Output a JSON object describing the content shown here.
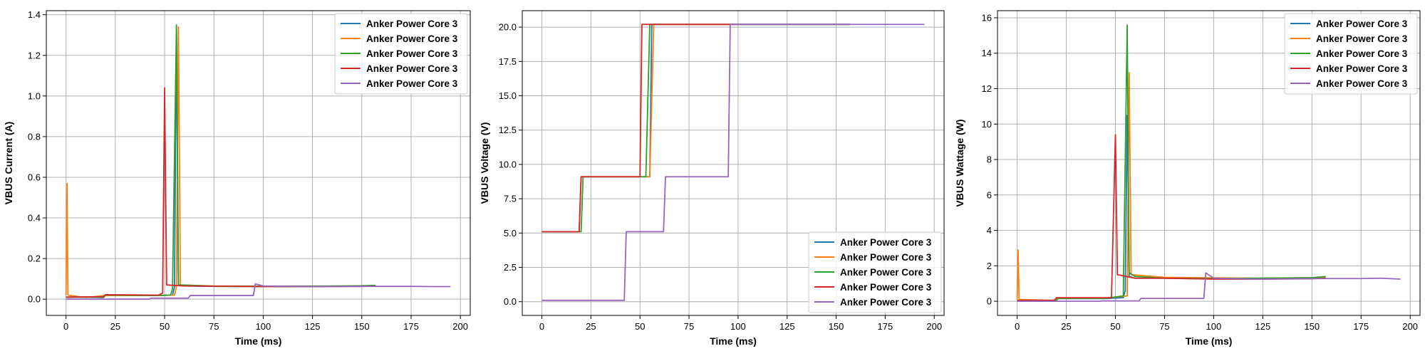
{
  "chart_data": [
    {
      "type": "line",
      "xlabel": "Time (ms)",
      "ylabel": "VBUS Current (A)",
      "xlim": [
        -10,
        205
      ],
      "ylim": [
        -0.08,
        1.42
      ],
      "xticks": [
        0,
        25,
        50,
        75,
        100,
        125,
        150,
        175,
        200
      ],
      "yticks": [
        0.0,
        0.2,
        0.4,
        0.6,
        0.8,
        1.0,
        1.2,
        1.4
      ],
      "ytick_decimals": 1,
      "grid": true,
      "legend_position": "top-right",
      "series": [
        {
          "name": "Anker Power Core 3",
          "color": "#1f77b4",
          "points": [
            [
              0,
              0.01
            ],
            [
              10,
              0.01
            ],
            [
              19,
              0.008
            ],
            [
              20,
              0.02
            ],
            [
              45,
              0.018
            ],
            [
              54,
              0.02
            ],
            [
              55,
              0.06
            ],
            [
              56,
              1.33
            ],
            [
              57,
              0.07
            ],
            [
              60,
              0.065
            ],
            [
              75,
              0.063
            ],
            [
              100,
              0.062
            ],
            [
              125,
              0.063
            ],
            [
              150,
              0.064
            ],
            [
              157,
              0.066
            ]
          ]
        },
        {
          "name": "Anker Power Core 3",
          "color": "#ff7f0e",
          "points": [
            [
              0,
              0.02
            ],
            [
              0.5,
              0.57
            ],
            [
              1,
              0.02
            ],
            [
              10,
              0.008
            ],
            [
              20,
              0.018
            ],
            [
              45,
              0.018
            ],
            [
              55,
              0.02
            ],
            [
              56,
              0.06
            ],
            [
              57,
              1.34
            ],
            [
              58,
              0.07
            ],
            [
              75,
              0.065
            ],
            [
              100,
              0.064
            ],
            [
              125,
              0.064
            ],
            [
              150,
              0.065
            ],
            [
              157,
              0.066
            ]
          ]
        },
        {
          "name": "Anker Power Core 3",
          "color": "#2ca02c",
          "points": [
            [
              0,
              0.01
            ],
            [
              19,
              0.01
            ],
            [
              20,
              0.02
            ],
            [
              45,
              0.018
            ],
            [
              53,
              0.02
            ],
            [
              54,
              0.05
            ],
            [
              56,
              1.35
            ],
            [
              57,
              0.07
            ],
            [
              75,
              0.064
            ],
            [
              100,
              0.063
            ],
            [
              125,
              0.064
            ],
            [
              150,
              0.066
            ],
            [
              157,
              0.068
            ]
          ]
        },
        {
          "name": "Anker Power Core 3",
          "color": "#d62728",
          "points": [
            [
              0,
              0.01
            ],
            [
              19,
              0.012
            ],
            [
              20,
              0.022
            ],
            [
              47,
              0.02
            ],
            [
              49,
              0.03
            ],
            [
              50,
              1.04
            ],
            [
              51,
              0.07
            ],
            [
              60,
              0.065
            ],
            [
              75,
              0.064
            ],
            [
              100,
              0.062
            ],
            [
              125,
              0.062
            ],
            [
              150,
              0.063
            ],
            [
              157,
              0.064
            ]
          ]
        },
        {
          "name": "Anker Power Core 3",
          "color": "#9467bd",
          "points": [
            [
              0,
              0.0
            ],
            [
              20,
              0.0
            ],
            [
              42,
              0.0
            ],
            [
              43,
              0.005
            ],
            [
              62,
              0.005
            ],
            [
              63,
              0.018
            ],
            [
              95,
              0.018
            ],
            [
              96,
              0.075
            ],
            [
              100,
              0.065
            ],
            [
              125,
              0.062
            ],
            [
              150,
              0.063
            ],
            [
              175,
              0.063
            ],
            [
              185,
              0.062
            ],
            [
              195,
              0.062
            ]
          ]
        }
      ]
    },
    {
      "type": "line",
      "xlabel": "Time (ms)",
      "ylabel": "VBUS Voltage (V)",
      "xlim": [
        -10,
        205
      ],
      "ylim": [
        -1.0,
        21.2
      ],
      "xticks": [
        0,
        25,
        50,
        75,
        100,
        125,
        150,
        175,
        200
      ],
      "yticks": [
        0.0,
        2.5,
        5.0,
        7.5,
        10.0,
        12.5,
        15.0,
        17.5,
        20.0
      ],
      "ytick_decimals": 1,
      "grid": true,
      "legend_position": "bottom-right",
      "series": [
        {
          "name": "Anker Power Core 3",
          "color": "#1f77b4",
          "points": [
            [
              0,
              5.1
            ],
            [
              19,
              5.1
            ],
            [
              20,
              9.1
            ],
            [
              55,
              9.1
            ],
            [
              56,
              20.2
            ],
            [
              157,
              20.2
            ]
          ]
        },
        {
          "name": "Anker Power Core 3",
          "color": "#ff7f0e",
          "points": [
            [
              0,
              5.1
            ],
            [
              19,
              5.1
            ],
            [
              20,
              9.1
            ],
            [
              55,
              9.1
            ],
            [
              57,
              20.2
            ],
            [
              157,
              20.2
            ]
          ]
        },
        {
          "name": "Anker Power Core 3",
          "color": "#2ca02c",
          "points": [
            [
              0,
              5.1
            ],
            [
              20,
              5.1
            ],
            [
              21,
              9.1
            ],
            [
              53,
              9.1
            ],
            [
              55,
              20.2
            ],
            [
              157,
              20.2
            ]
          ]
        },
        {
          "name": "Anker Power Core 3",
          "color": "#d62728",
          "points": [
            [
              0,
              5.1
            ],
            [
              19,
              5.1
            ],
            [
              20,
              9.1
            ],
            [
              50,
              9.1
            ],
            [
              51,
              20.2
            ],
            [
              157,
              20.2
            ]
          ]
        },
        {
          "name": "Anker Power Core 3",
          "color": "#9467bd",
          "points": [
            [
              0,
              0.1
            ],
            [
              42,
              0.1
            ],
            [
              43,
              5.1
            ],
            [
              62,
              5.1
            ],
            [
              63,
              9.1
            ],
            [
              95,
              9.1
            ],
            [
              96,
              20.2
            ],
            [
              195,
              20.2
            ]
          ]
        }
      ]
    },
    {
      "type": "line",
      "xlabel": "Time (ms)",
      "ylabel": "VBUS Wattage (W)",
      "xlim": [
        -10,
        205
      ],
      "ylim": [
        -0.8,
        16.4
      ],
      "xticks": [
        0,
        25,
        50,
        75,
        100,
        125,
        150,
        175,
        200
      ],
      "yticks": [
        0,
        2,
        4,
        6,
        8,
        10,
        12,
        14,
        16
      ],
      "ytick_decimals": 0,
      "grid": true,
      "legend_position": "top-right",
      "series": [
        {
          "name": "Anker Power Core 3",
          "color": "#1f77b4",
          "points": [
            [
              0,
              0.05
            ],
            [
              19,
              0.05
            ],
            [
              20,
              0.15
            ],
            [
              45,
              0.15
            ],
            [
              54,
              0.2
            ],
            [
              55,
              0.6
            ],
            [
              56,
              10.5
            ],
            [
              57,
              1.4
            ],
            [
              60,
              1.3
            ],
            [
              75,
              1.3
            ],
            [
              100,
              1.28
            ],
            [
              125,
              1.3
            ],
            [
              150,
              1.32
            ],
            [
              157,
              1.35
            ]
          ]
        },
        {
          "name": "Anker Power Core 3",
          "color": "#ff7f0e",
          "points": [
            [
              0,
              0.1
            ],
            [
              0.5,
              2.9
            ],
            [
              1,
              0.1
            ],
            [
              19,
              0.05
            ],
            [
              20,
              0.17
            ],
            [
              45,
              0.17
            ],
            [
              56,
              0.3
            ],
            [
              57,
              12.9
            ],
            [
              58,
              1.5
            ],
            [
              75,
              1.35
            ],
            [
              100,
              1.32
            ],
            [
              125,
              1.3
            ],
            [
              150,
              1.33
            ],
            [
              157,
              1.35
            ]
          ]
        },
        {
          "name": "Anker Power Core 3",
          "color": "#2ca02c",
          "points": [
            [
              0,
              0.05
            ],
            [
              20,
              0.05
            ],
            [
              21,
              0.17
            ],
            [
              45,
              0.17
            ],
            [
              54,
              0.3
            ],
            [
              56,
              15.6
            ],
            [
              57,
              1.6
            ],
            [
              60,
              1.4
            ],
            [
              75,
              1.3
            ],
            [
              100,
              1.28
            ],
            [
              125,
              1.3
            ],
            [
              150,
              1.33
            ],
            [
              157,
              1.4
            ]
          ]
        },
        {
          "name": "Anker Power Core 3",
          "color": "#d62728",
          "points": [
            [
              0,
              0.05
            ],
            [
              19,
              0.06
            ],
            [
              20,
              0.2
            ],
            [
              48,
              0.2
            ],
            [
              50,
              9.4
            ],
            [
              51,
              1.5
            ],
            [
              60,
              1.3
            ],
            [
              75,
              1.3
            ],
            [
              100,
              1.25
            ],
            [
              125,
              1.25
            ],
            [
              150,
              1.27
            ],
            [
              157,
              1.3
            ]
          ]
        },
        {
          "name": "Anker Power Core 3",
          "color": "#9467bd",
          "points": [
            [
              0,
              0.0
            ],
            [
              42,
              0.0
            ],
            [
              43,
              0.02
            ],
            [
              62,
              0.02
            ],
            [
              63,
              0.16
            ],
            [
              95,
              0.16
            ],
            [
              96,
              1.6
            ],
            [
              100,
              1.3
            ],
            [
              125,
              1.25
            ],
            [
              150,
              1.28
            ],
            [
              175,
              1.28
            ],
            [
              185,
              1.3
            ],
            [
              195,
              1.25
            ]
          ]
        }
      ]
    }
  ]
}
